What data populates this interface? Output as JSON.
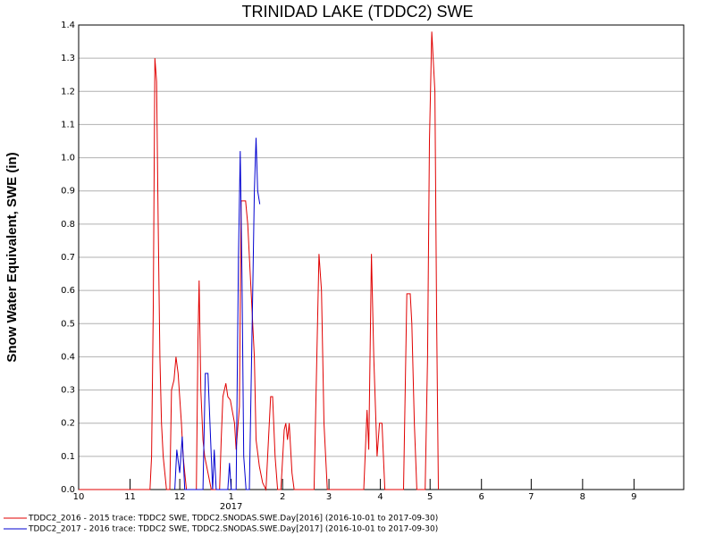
{
  "chart_data": {
    "type": "line",
    "title": "TRINIDAD LAKE (TDDC2) SWE",
    "y_label": "Snow Water Equivalent, SWE (in)",
    "year_label": "2017",
    "xlim": [
      0,
      365
    ],
    "xticks": [
      {
        "value": 0,
        "label": "10"
      },
      {
        "value": 31,
        "label": "11"
      },
      {
        "value": 61,
        "label": "12"
      },
      {
        "value": 92,
        "label": "1"
      },
      {
        "value": 123,
        "label": "2"
      },
      {
        "value": 151,
        "label": "3"
      },
      {
        "value": 182,
        "label": "4"
      },
      {
        "value": 212,
        "label": "5"
      },
      {
        "value": 243,
        "label": "6"
      },
      {
        "value": 273,
        "label": "7"
      },
      {
        "value": 304,
        "label": "8"
      },
      {
        "value": 335,
        "label": "9"
      }
    ],
    "ylim": [
      0,
      1.4
    ],
    "yticks": [
      {
        "value": 0,
        "label": "0.0"
      },
      0.1,
      0.2,
      0.3,
      0.4,
      0.5,
      0.6,
      0.7,
      0.8,
      0.9,
      {
        "value": 1,
        "label": "1.0"
      },
      1.1,
      1.2,
      1.3,
      1.4
    ],
    "grid": true,
    "legend": "bottom",
    "series": [
      {
        "name": "TDDC2_2016 - 2015 trace: TDDC2 SWE, TDDC2.SNODAS.SWE.Day[2016] (2016-10-01 to 2017-09-30)",
        "color": "#e00000",
        "x": [
          0,
          43,
          44,
          45,
          46,
          47,
          48,
          49,
          50,
          51,
          53,
          55,
          56,
          57.5,
          58.7,
          60,
          62,
          63,
          65,
          71,
          72,
          72.7,
          73.7,
          75,
          76,
          78,
          80,
          85,
          86,
          87,
          88.8,
          90,
          91.5,
          94,
          95,
          97,
          98,
          100.7,
          102,
          104,
          106,
          107,
          109,
          111,
          113,
          115.8,
          117,
          118.5,
          120,
          122,
          124,
          125,
          126,
          127,
          128.7,
          130,
          142,
          145,
          146.5,
          148,
          150,
          172,
          174,
          175,
          176.6,
          178,
          180,
          181.5,
          183,
          184.7,
          196,
          198,
          200,
          201,
          202.5,
          204,
          209,
          210.5,
          211.6,
          213,
          214.9,
          216,
          217
        ],
        "values": [
          0,
          0,
          0.1,
          0.55,
          1.3,
          1.23,
          0.8,
          0.4,
          0.2,
          0.1,
          0,
          0,
          0.3,
          0.33,
          0.4,
          0.35,
          0.2,
          0.1,
          0,
          0,
          0.45,
          0.63,
          0.3,
          0.15,
          0.1,
          0.05,
          0,
          0,
          0.15,
          0.28,
          0.32,
          0.28,
          0.27,
          0.2,
          0.12,
          0.25,
          0.87,
          0.87,
          0.8,
          0.6,
          0.4,
          0.15,
          0.07,
          0.02,
          0,
          0.28,
          0.28,
          0.1,
          0,
          0,
          0.18,
          0.2,
          0.15,
          0.2,
          0.05,
          0,
          0,
          0.71,
          0.6,
          0.2,
          0,
          0,
          0.24,
          0.12,
          0.71,
          0.4,
          0.1,
          0.2,
          0.2,
          0,
          0,
          0.59,
          0.59,
          0.5,
          0.2,
          0,
          0,
          0.4,
          1.05,
          1.38,
          1.2,
          0.5,
          0
        ]
      },
      {
        "name": "TDDC2_2017 - 2016 trace: TDDC2 SWE, TDDC2.SNODAS.SWE.Day[2017] (2016-10-01 to 2017-09-30)",
        "color": "#0000d0",
        "x": [
          58,
          59.2,
          61,
          62.5,
          64,
          75,
          76.4,
          78,
          80,
          80.8,
          81.8,
          83,
          90,
          91,
          92,
          95,
          96.4,
          97.5,
          98.5,
          99.6,
          101,
          103,
          105,
          106,
          107,
          108,
          109.3
        ],
        "values": [
          0,
          0.12,
          0.05,
          0.16,
          0,
          0,
          0.35,
          0.35,
          0.1,
          0,
          0.12,
          0,
          0,
          0.08,
          0,
          0,
          0.7,
          1.02,
          0.65,
          0.1,
          0,
          0,
          0.6,
          0.9,
          1.06,
          0.9,
          0.86
        ]
      }
    ]
  }
}
